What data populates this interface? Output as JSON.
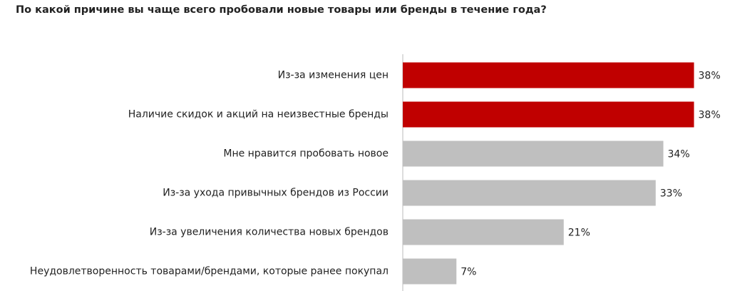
{
  "chart_data": {
    "type": "barh",
    "title": "По какой причине вы чаще всего пробовали новые товары или бренды в течение года?",
    "categories": [
      "Из-за изменения цен",
      "Наличие скидок и акций на неизвестные бренды",
      "Мне нравится пробовать новое",
      "Из-за ухода привычных брендов из России",
      "Из-за увеличения количества новых брендов",
      "Неудовлетворенность товарами/брендами, которые ранее покупал"
    ],
    "values": [
      38,
      38,
      34,
      33,
      21,
      7
    ],
    "value_labels": [
      "38%",
      "38%",
      "34%",
      "33%",
      "21%",
      "7%"
    ],
    "colors": [
      "#c00000",
      "#c00000",
      "#bfbfbf",
      "#bfbfbf",
      "#bfbfbf",
      "#bfbfbf"
    ]
  }
}
